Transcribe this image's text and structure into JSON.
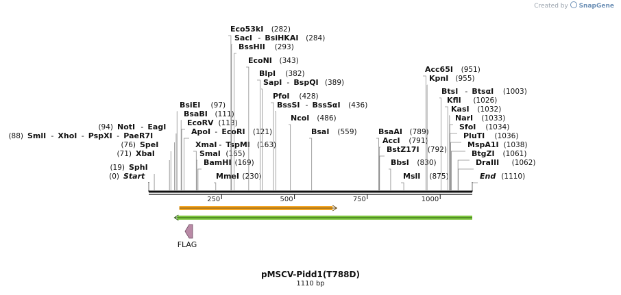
{
  "credit": {
    "prefix": "Created by",
    "brand": "SnapGene"
  },
  "map": {
    "name": "pMSCV-Pidd1(T788D)",
    "length_label": "1110 bp",
    "length": 1110,
    "ticks": [
      {
        "value": 250,
        "label": "250"
      },
      {
        "value": 500,
        "label": "500"
      },
      {
        "value": 750,
        "label": "750"
      },
      {
        "value": 1000,
        "label": "1000"
      }
    ],
    "features": [
      {
        "name": "orange-feature",
        "start": 105,
        "end": 645,
        "direction": "forward",
        "color": "#f5a623",
        "label": ""
      },
      {
        "name": "green-feature",
        "start": 88,
        "end": 1110,
        "direction": "reverse",
        "color": "#7bc43c",
        "label": ""
      },
      {
        "name": "flag-feature",
        "start": 130,
        "end": 150,
        "direction": "reverse",
        "color": "#b98aa6",
        "label": "FLAG"
      }
    ],
    "sites": [
      {
        "name": "Start",
        "pos": "(0)",
        "side": "left",
        "italic": true
      },
      {
        "name": "SphI",
        "pos": "(19)",
        "side": "left"
      },
      {
        "name": "XbaI",
        "pos": "(71)",
        "side": "left"
      },
      {
        "name": "SpeI",
        "pos": "(76)",
        "side": "left"
      },
      {
        "name": "SmlI",
        "pos": "(88)",
        "side": "left"
      },
      {
        "name": "XhoI",
        "pos": "",
        "side": "left"
      },
      {
        "name": "PspXI",
        "pos": "",
        "side": "left"
      },
      {
        "name": "PaeR7I",
        "pos": "",
        "side": "left"
      },
      {
        "name": "NotI",
        "pos": "(94)",
        "side": "left"
      },
      {
        "name": "EagI",
        "pos": "",
        "side": "left"
      },
      {
        "name": "BsiEI",
        "pos": "(97)",
        "side": "right"
      },
      {
        "name": "BsaBI",
        "pos": "(111)",
        "side": "right"
      },
      {
        "name": "EcoRV",
        "pos": "(113)",
        "side": "right"
      },
      {
        "name": "ApoI",
        "pos": "",
        "side": "right"
      },
      {
        "name": "EcoRI",
        "pos": "(121)",
        "side": "right"
      },
      {
        "name": "XmaI",
        "pos": "",
        "side": "right"
      },
      {
        "name": "TspMI",
        "pos": "(163)",
        "side": "right"
      },
      {
        "name": "SmaI",
        "pos": "(165)",
        "side": "right"
      },
      {
        "name": "BamHI",
        "pos": "(169)",
        "side": "right"
      },
      {
        "name": "MmeI",
        "pos": "(230)",
        "side": "right"
      },
      {
        "name": "Eco53kI",
        "pos": "(282)",
        "side": "right"
      },
      {
        "name": "SacI",
        "pos": "",
        "side": "right"
      },
      {
        "name": "BsiHKAI",
        "pos": "(284)",
        "side": "right"
      },
      {
        "name": "BssHII",
        "pos": "(293)",
        "side": "right"
      },
      {
        "name": "EcoNI",
        "pos": "(343)",
        "side": "right"
      },
      {
        "name": "BlpI",
        "pos": "(382)",
        "side": "right"
      },
      {
        "name": "SapI",
        "pos": "",
        "side": "right"
      },
      {
        "name": "BspQI",
        "pos": "(389)",
        "side": "right"
      },
      {
        "name": "PfoI",
        "pos": "(428)",
        "side": "right"
      },
      {
        "name": "BssSI",
        "pos": "",
        "side": "right"
      },
      {
        "name": "BssSαI",
        "pos": "(436)",
        "side": "right"
      },
      {
        "name": "NcoI",
        "pos": "(486)",
        "side": "right"
      },
      {
        "name": "BsaI",
        "pos": "(559)",
        "side": "right"
      },
      {
        "name": "BsaAI",
        "pos": "(789)",
        "side": "right"
      },
      {
        "name": "AccI",
        "pos": "(791)",
        "side": "right"
      },
      {
        "name": "BstZ17I",
        "pos": "(792)",
        "side": "right"
      },
      {
        "name": "BbsI",
        "pos": "(830)",
        "side": "right"
      },
      {
        "name": "MslI",
        "pos": "(875)",
        "side": "right"
      },
      {
        "name": "Acc65I",
        "pos": "(951)",
        "side": "right"
      },
      {
        "name": "KpnI",
        "pos": "(955)",
        "side": "right"
      },
      {
        "name": "BtsI",
        "pos": "",
        "side": "right"
      },
      {
        "name": "BtsαI",
        "pos": "(1003)",
        "side": "right"
      },
      {
        "name": "KflI",
        "pos": "(1026)",
        "side": "right"
      },
      {
        "name": "KasI",
        "pos": "(1032)",
        "side": "right"
      },
      {
        "name": "NarI",
        "pos": "(1033)",
        "side": "right"
      },
      {
        "name": "SfoI",
        "pos": "(1034)",
        "side": "right"
      },
      {
        "name": "PluTI",
        "pos": "(1036)",
        "side": "right"
      },
      {
        "name": "MspA1I",
        "pos": "(1038)",
        "side": "right"
      },
      {
        "name": "BtgZI",
        "pos": "(1061)",
        "side": "right"
      },
      {
        "name": "DraIII",
        "pos": "(1062)",
        "side": "right"
      },
      {
        "name": "End",
        "pos": "(1110)",
        "side": "right",
        "italic": true
      }
    ]
  }
}
